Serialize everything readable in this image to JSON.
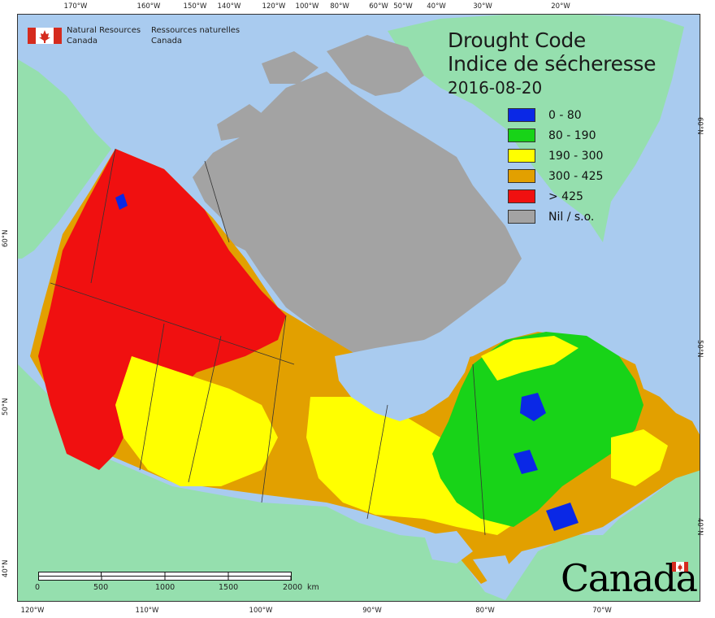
{
  "agency": {
    "en_line1": "Natural Resources",
    "en_line2": "Canada",
    "fr_line1": "Ressources naturelles",
    "fr_line2": "Canada"
  },
  "title": {
    "en": "Drought Code",
    "fr": "Indice de sécheresse",
    "date": "2016-08-20"
  },
  "legend": [
    {
      "label": "0 - 80",
      "color": "#0a28e6"
    },
    {
      "label": "80 - 190",
      "color": "#18d318"
    },
    {
      "label": "190 - 300",
      "color": "#ffff00"
    },
    {
      "label": "300 - 425",
      "color": "#e2a000"
    },
    {
      "label": "> 425",
      "color": "#f01010"
    },
    {
      "label": "Nil / s.o.",
      "color": "#a3a3a3"
    }
  ],
  "graticule": {
    "top": [
      "170°W",
      "160°W",
      "150°W",
      "140°W",
      "120°W",
      "100°W",
      "80°W",
      "60°W",
      "50°W",
      "40°W",
      "30°W",
      "20°W"
    ],
    "bottom": [
      "120°W",
      "110°W",
      "100°W",
      "90°W",
      "80°W",
      "70°W"
    ],
    "left": [
      "60°N",
      "50°N",
      "40°N"
    ],
    "right": [
      "60°N",
      "50°N",
      "40°N"
    ]
  },
  "scale": {
    "ticks": [
      "0",
      "500",
      "1000",
      "1500",
      "2000"
    ],
    "unit": "km"
  },
  "wordmark": "Canada",
  "colors": {
    "ocean": "#a9cbef",
    "land_other": "#95dfae",
    "greenland": "#95dfae",
    "nil": "#a3a3a3",
    "boundary": "#333333"
  }
}
